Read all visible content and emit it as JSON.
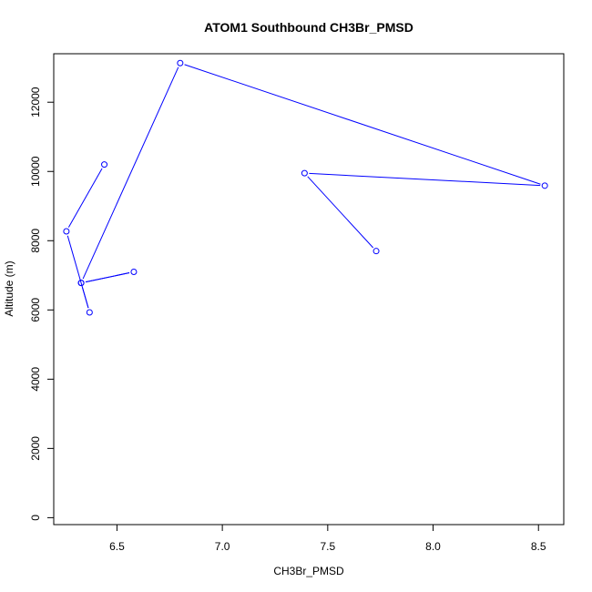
{
  "chart_data": {
    "type": "line",
    "title": "ATOM1 Southbound CH3Br_PMSD",
    "xlabel": "CH3Br_PMSD",
    "ylabel": "Altitude (m)",
    "xlim": [
      6.2,
      8.62
    ],
    "ylim": [
      -200,
      13400
    ],
    "x_ticks": [
      6.5,
      7.0,
      7.5,
      8.0,
      8.5
    ],
    "x_tick_labels": [
      "6.5",
      "7.0",
      "7.5",
      "8.0",
      "8.5"
    ],
    "y_ticks": [
      0,
      2000,
      4000,
      6000,
      8000,
      10000,
      12000
    ],
    "y_tick_labels": [
      "0",
      "2000",
      "4000",
      "6000",
      "8000",
      "10000",
      "12000"
    ],
    "grid": false,
    "series": [
      {
        "color": "#0000ff",
        "marker": "open-circle",
        "points": [
          {
            "x": 6.44,
            "y": 10200
          },
          {
            "x": 6.26,
            "y": 8270
          },
          {
            "x": 6.37,
            "y": 5930
          },
          {
            "x": 6.33,
            "y": 6780
          },
          {
            "x": 6.58,
            "y": 7100
          },
          {
            "x": 6.33,
            "y": 6780
          },
          {
            "x": 6.8,
            "y": 13130
          },
          {
            "x": 8.53,
            "y": 9590
          },
          {
            "x": 7.39,
            "y": 9950
          },
          {
            "x": 7.73,
            "y": 7700
          }
        ]
      }
    ]
  }
}
